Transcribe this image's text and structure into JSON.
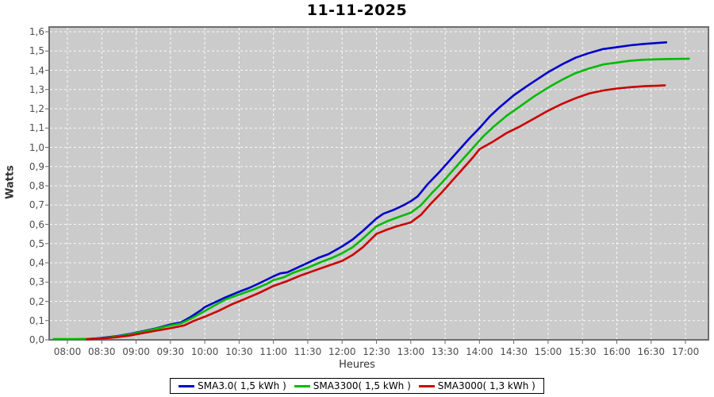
{
  "title": "11-11-2025",
  "colors": {
    "plot_background": "#cbcbcb",
    "plot_border": "#6e6e6e",
    "grid": "#ffffff",
    "tick": "#666666",
    "page_background": "#ffffff",
    "series_blue": "#0000cc",
    "series_green": "#00bb00",
    "series_red": "#cc0000"
  },
  "chart_data": {
    "type": "line",
    "title": "11-11-2025",
    "xlabel": "Heures",
    "ylabel": "Watts",
    "ylim": [
      0,
      1.6
    ],
    "xlim_hours": [
      7.73,
      17.33
    ],
    "grid": "white dashed on gray plot background",
    "legend_position": "bottom-center boxed",
    "y_tick_labels": [
      "0,0",
      "0,1",
      "0,2",
      "0,3",
      "0,4",
      "0,5",
      "0,6",
      "0,7",
      "0,8",
      "0,9",
      "1,0",
      "1,1",
      "1,2",
      "1,3",
      "1,4",
      "1,5",
      "1,6"
    ],
    "y_tick_values": [
      0,
      0.1,
      0.2,
      0.3,
      0.4,
      0.5,
      0.6,
      0.7,
      0.8,
      0.9,
      1.0,
      1.1,
      1.2,
      1.3,
      1.4,
      1.5,
      1.6
    ],
    "x_tick_labels": [
      "08:00",
      "08:30",
      "09:00",
      "09:30",
      "10:00",
      "10:30",
      "11:00",
      "11:30",
      "12:00",
      "12:30",
      "13:00",
      "13:30",
      "14:00",
      "14:30",
      "15:00",
      "15:30",
      "16:00",
      "16:30",
      "17:00"
    ],
    "x_tick_values": [
      8,
      8.5,
      9,
      9.5,
      10,
      10.5,
      11,
      11.5,
      12,
      12.5,
      13,
      13.5,
      14,
      14.5,
      15,
      15.5,
      16,
      16.5,
      17
    ],
    "series": [
      {
        "name": "SMA3.0( 1,5 kWh )",
        "color": "#0000cc",
        "points": [
          [
            8.28,
            0.004
          ],
          [
            8.5,
            0.01
          ],
          [
            8.7,
            0.018
          ],
          [
            8.9,
            0.03
          ],
          [
            9.1,
            0.045
          ],
          [
            9.3,
            0.06
          ],
          [
            9.5,
            0.08
          ],
          [
            9.65,
            0.09
          ],
          [
            9.8,
            0.12
          ],
          [
            9.95,
            0.155
          ],
          [
            10.0,
            0.17
          ],
          [
            10.15,
            0.195
          ],
          [
            10.3,
            0.22
          ],
          [
            10.5,
            0.25
          ],
          [
            10.65,
            0.27
          ],
          [
            10.8,
            0.295
          ],
          [
            11.0,
            0.33
          ],
          [
            11.1,
            0.345
          ],
          [
            11.2,
            0.35
          ],
          [
            11.35,
            0.375
          ],
          [
            11.5,
            0.4
          ],
          [
            11.65,
            0.425
          ],
          [
            11.8,
            0.445
          ],
          [
            12.0,
            0.485
          ],
          [
            12.15,
            0.52
          ],
          [
            12.3,
            0.565
          ],
          [
            12.5,
            0.63
          ],
          [
            12.6,
            0.655
          ],
          [
            12.75,
            0.675
          ],
          [
            12.9,
            0.7
          ],
          [
            13.0,
            0.72
          ],
          [
            13.1,
            0.745
          ],
          [
            13.25,
            0.81
          ],
          [
            13.4,
            0.865
          ],
          [
            13.55,
            0.925
          ],
          [
            13.7,
            0.985
          ],
          [
            13.85,
            1.045
          ],
          [
            14.0,
            1.1
          ],
          [
            14.15,
            1.16
          ],
          [
            14.3,
            1.21
          ],
          [
            14.5,
            1.27
          ],
          [
            14.7,
            1.32
          ],
          [
            14.85,
            1.355
          ],
          [
            15.0,
            1.39
          ],
          [
            15.2,
            1.43
          ],
          [
            15.4,
            1.465
          ],
          [
            15.6,
            1.49
          ],
          [
            15.8,
            1.51
          ],
          [
            16.0,
            1.52
          ],
          [
            16.2,
            1.53
          ],
          [
            16.4,
            1.537
          ],
          [
            16.6,
            1.542
          ],
          [
            16.72,
            1.545
          ]
        ]
      },
      {
        "name": "SMA3300( 1,5 kWh )",
        "color": "#00bb00",
        "points": [
          [
            7.8,
            0.004
          ],
          [
            8.1,
            0.004
          ],
          [
            8.3,
            0.005
          ],
          [
            8.5,
            0.008
          ],
          [
            8.7,
            0.016
          ],
          [
            8.9,
            0.028
          ],
          [
            9.1,
            0.042
          ],
          [
            9.3,
            0.058
          ],
          [
            9.5,
            0.075
          ],
          [
            9.65,
            0.085
          ],
          [
            9.8,
            0.11
          ],
          [
            9.95,
            0.14
          ],
          [
            10.1,
            0.17
          ],
          [
            10.3,
            0.21
          ],
          [
            10.5,
            0.235
          ],
          [
            10.7,
            0.26
          ],
          [
            10.9,
            0.29
          ],
          [
            11.0,
            0.31
          ],
          [
            11.15,
            0.325
          ],
          [
            11.3,
            0.35
          ],
          [
            11.5,
            0.375
          ],
          [
            11.7,
            0.405
          ],
          [
            11.85,
            0.425
          ],
          [
            12.0,
            0.45
          ],
          [
            12.15,
            0.48
          ],
          [
            12.3,
            0.525
          ],
          [
            12.5,
            0.59
          ],
          [
            12.65,
            0.615
          ],
          [
            12.8,
            0.635
          ],
          [
            13.0,
            0.66
          ],
          [
            13.15,
            0.7
          ],
          [
            13.3,
            0.76
          ],
          [
            13.45,
            0.815
          ],
          [
            13.6,
            0.875
          ],
          [
            13.75,
            0.935
          ],
          [
            13.9,
            0.995
          ],
          [
            14.05,
            1.055
          ],
          [
            14.2,
            1.105
          ],
          [
            14.4,
            1.165
          ],
          [
            14.6,
            1.215
          ],
          [
            14.8,
            1.265
          ],
          [
            15.0,
            1.31
          ],
          [
            15.2,
            1.35
          ],
          [
            15.4,
            1.385
          ],
          [
            15.6,
            1.41
          ],
          [
            15.8,
            1.43
          ],
          [
            16.0,
            1.44
          ],
          [
            16.2,
            1.45
          ],
          [
            16.4,
            1.455
          ],
          [
            16.7,
            1.458
          ],
          [
            17.05,
            1.46
          ]
        ]
      },
      {
        "name": "SMA3000( 1,3 kWh )",
        "color": "#cc0000",
        "points": [
          [
            8.28,
            0.003
          ],
          [
            8.5,
            0.007
          ],
          [
            8.7,
            0.013
          ],
          [
            8.9,
            0.022
          ],
          [
            9.1,
            0.035
          ],
          [
            9.3,
            0.048
          ],
          [
            9.5,
            0.06
          ],
          [
            9.7,
            0.075
          ],
          [
            9.85,
            0.1
          ],
          [
            10.0,
            0.12
          ],
          [
            10.2,
            0.15
          ],
          [
            10.4,
            0.185
          ],
          [
            10.6,
            0.215
          ],
          [
            10.8,
            0.245
          ],
          [
            11.0,
            0.28
          ],
          [
            11.2,
            0.305
          ],
          [
            11.4,
            0.335
          ],
          [
            11.6,
            0.36
          ],
          [
            11.8,
            0.385
          ],
          [
            12.0,
            0.41
          ],
          [
            12.15,
            0.44
          ],
          [
            12.3,
            0.48
          ],
          [
            12.5,
            0.55
          ],
          [
            12.65,
            0.572
          ],
          [
            12.8,
            0.59
          ],
          [
            13.0,
            0.61
          ],
          [
            13.15,
            0.65
          ],
          [
            13.3,
            0.71
          ],
          [
            13.45,
            0.765
          ],
          [
            13.6,
            0.825
          ],
          [
            13.75,
            0.885
          ],
          [
            13.9,
            0.945
          ],
          [
            14.0,
            0.99
          ],
          [
            14.2,
            1.03
          ],
          [
            14.4,
            1.075
          ],
          [
            14.6,
            1.11
          ],
          [
            14.8,
            1.15
          ],
          [
            15.0,
            1.19
          ],
          [
            15.2,
            1.225
          ],
          [
            15.4,
            1.255
          ],
          [
            15.6,
            1.28
          ],
          [
            15.8,
            1.295
          ],
          [
            16.0,
            1.305
          ],
          [
            16.2,
            1.312
          ],
          [
            16.4,
            1.317
          ],
          [
            16.6,
            1.32
          ],
          [
            16.7,
            1.322
          ]
        ]
      }
    ]
  }
}
